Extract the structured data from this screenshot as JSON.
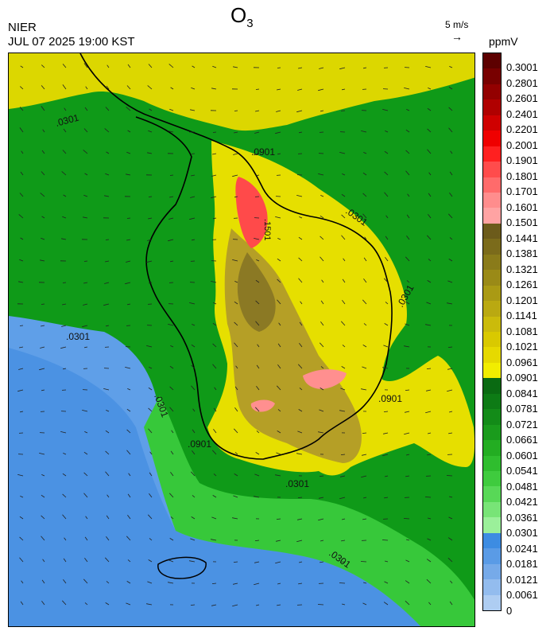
{
  "header": {
    "title": "O",
    "title_sub": "3",
    "agency": "NIER",
    "timestamp": "JUL 07 2025 19:00 KST",
    "wind_reference": "5 m/s",
    "unit": "ppmV"
  },
  "map": {
    "contour_labels": [
      ".0301",
      ".0301",
      ".0301",
      ".0301",
      ".0301",
      ".0301",
      ".0301",
      ".0901",
      ".0901",
      ".0901",
      ".1501"
    ],
    "colors": {
      "sea_low": "#6aa8ec",
      "sea_mid": "#3f8fe6",
      "coast_green": "#39c83a",
      "land_green": "#12a012",
      "land_dark_green": "#0b7d17",
      "yellow": "#e6e000",
      "olive": "#b8a71d",
      "dark_olive": "#8f7f22",
      "red": "#ff4040",
      "pink": "#ff8f8f"
    }
  },
  "colorbar": {
    "labels": [
      "0.3001",
      "0.2801",
      "0.2601",
      "0.2401",
      "0.2201",
      "0.2001",
      "0.1901",
      "0.1801",
      "0.1701",
      "0.1601",
      "0.1501",
      "0.1441",
      "0.1381",
      "0.1321",
      "0.1261",
      "0.1201",
      "0.1141",
      "0.1081",
      "0.1021",
      "0.0961",
      "0.0901",
      "0.0841",
      "0.0781",
      "0.0721",
      "0.0661",
      "0.0601",
      "0.0541",
      "0.0481",
      "0.0421",
      "0.0361",
      "0.0301",
      "0.0241",
      "0.0181",
      "0.0121",
      "0.0061",
      "0"
    ],
    "colors": [
      "#5d0000",
      "#780000",
      "#930000",
      "#b00000",
      "#cf0000",
      "#ef0000",
      "#ff2020",
      "#ff4c4c",
      "#ff6b6b",
      "#ff8d8d",
      "#ffa3a3",
      "#6c5b1b",
      "#7b6b1b",
      "#8a7b1a",
      "#9a8a17",
      "#aa9a14",
      "#baa911",
      "#cbbb0b",
      "#d9c900",
      "#e6d900",
      "#f2ed00",
      "#0a6a12",
      "#0d7b15",
      "#138b18",
      "#1a9b1c",
      "#23ad22",
      "#2fbd2e",
      "#3fcb3e",
      "#58d857",
      "#78e477",
      "#9bf09a",
      "#3d8ce2",
      "#5a9be6",
      "#76aae9",
      "#93bcee",
      "#aecdf2"
    ]
  }
}
